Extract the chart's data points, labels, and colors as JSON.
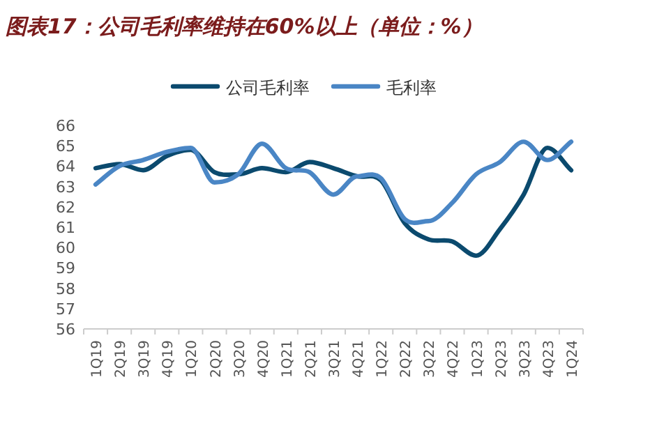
{
  "chart_data": {
    "type": "line",
    "title": "图表17：公司毛利率维持在60%以上（单位：%）",
    "categories": [
      "1Q19",
      "2Q19",
      "3Q19",
      "4Q19",
      "1Q20",
      "2Q20",
      "3Q20",
      "4Q20",
      "1Q21",
      "2Q21",
      "3Q21",
      "4Q21",
      "1Q22",
      "2Q22",
      "3Q22",
      "4Q22",
      "1Q23",
      "2Q23",
      "3Q23",
      "4Q23",
      "1Q24"
    ],
    "series": [
      {
        "name": "公司毛利率",
        "color": "#0b4a6e",
        "values": [
          63.9,
          64.1,
          63.8,
          64.5,
          64.8,
          63.7,
          63.6,
          63.9,
          63.7,
          64.2,
          63.9,
          63.5,
          63.3,
          61.2,
          60.4,
          60.3,
          59.6,
          60.9,
          62.6,
          64.9,
          63.8
        ]
      },
      {
        "name": "毛利率",
        "color": "#4a86c5",
        "values": [
          63.1,
          64.0,
          64.3,
          64.7,
          64.9,
          63.2,
          63.6,
          65.1,
          63.9,
          63.7,
          62.6,
          63.5,
          63.4,
          61.4,
          61.3,
          62.2,
          63.6,
          64.2,
          65.2,
          64.3,
          65.2
        ]
      }
    ],
    "ylim": [
      56,
      66
    ],
    "yticks": [
      56,
      57,
      58,
      59,
      60,
      61,
      62,
      63,
      64,
      65,
      66
    ],
    "legend": "top",
    "grid": false
  }
}
